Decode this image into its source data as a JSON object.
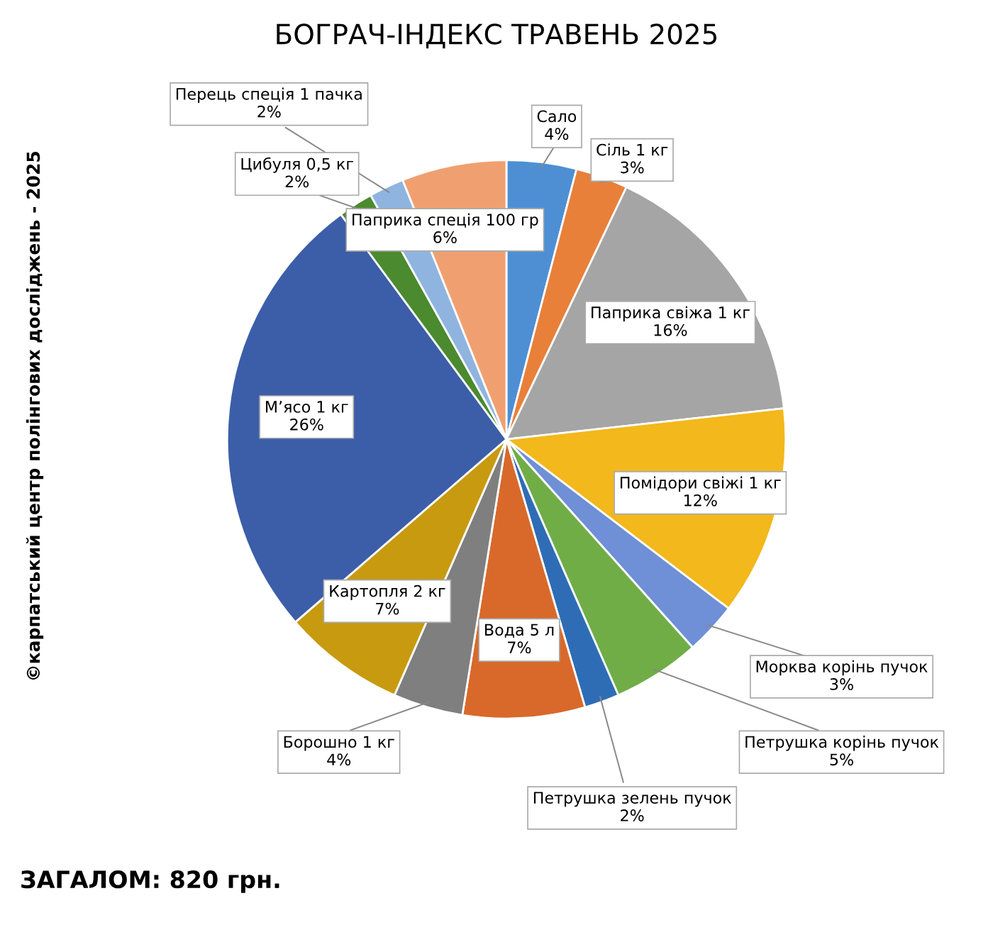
{
  "chart_data": {
    "type": "pie",
    "title": "БОГРАЧ-ІНДЕКС ТРАВЕНЬ 2025",
    "categories": [
      "Сало",
      "Сіль 1 кг",
      "Паприка свіжа 1 кг",
      "Помідори свіжі 1 кг",
      "Морква корінь пучок",
      "Петрушка корінь пучок",
      "Петрушка зелень пучок",
      "Вода 5 л",
      "Борошно 1 кг",
      "Картопля 2 кг",
      "М’ясо 1 кг",
      "Цибуля 0,5 кг",
      "Перець спеція 1 пачка",
      "Паприка спеція 100 гр"
    ],
    "values": [
      4,
      3,
      16,
      12,
      3,
      5,
      2,
      7,
      4,
      7,
      26,
      2,
      2,
      6
    ],
    "value_labels": [
      "4%",
      "3%",
      "16%",
      "12%",
      "3%",
      "5%",
      "2%",
      "7%",
      "4%",
      "7%",
      "26%",
      "2%",
      "2%",
      "6%"
    ],
    "colors": [
      "#4e8fd4",
      "#e8803a",
      "#a5a5a5",
      "#f2b81c",
      "#6f8fd6",
      "#70ad47",
      "#2e6db5",
      "#d8692a",
      "#7f7f7f",
      "#c79a10",
      "#3c5ea8",
      "#4b8a2e",
      "#8fb4e0",
      "#f0a070"
    ],
    "annotations": [
      "ЗАГАЛОМ: 820 грн.",
      "©карпатський центр полінгових досліджень - 2025"
    ],
    "legend": false
  }
}
